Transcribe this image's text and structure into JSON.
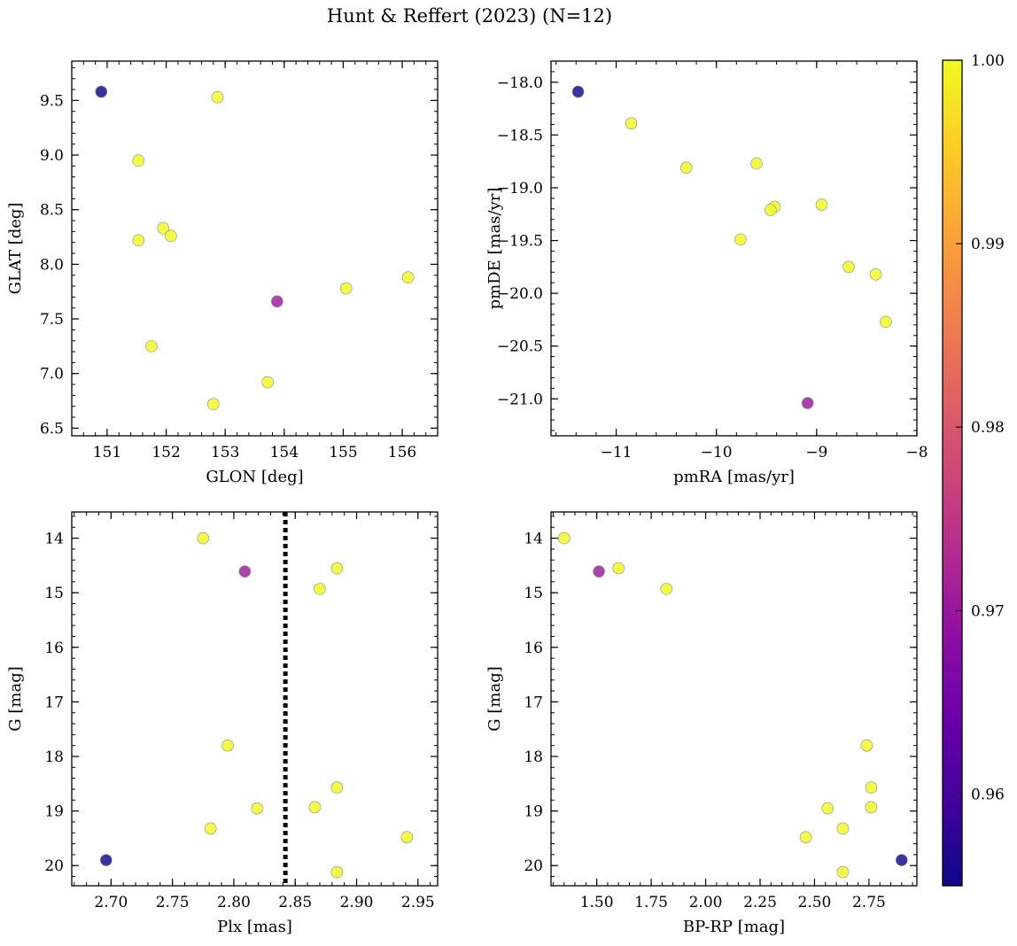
{
  "title": "Hunt & Reffert (2023) (N=12)",
  "colormap": {
    "name": "plasma",
    "range": [
      0.955,
      1.0
    ],
    "tick_labels": [
      "0.96",
      "0.97",
      "0.98",
      "0.99",
      "1.00"
    ],
    "ticks": [
      0.96,
      0.97,
      0.98,
      0.99,
      1.0
    ]
  },
  "chart_data": [
    {
      "type": "scatter",
      "xlabel": "GLON [deg]",
      "ylabel": "GLAT [deg]",
      "xlim": [
        150.4,
        156.6
      ],
      "ylim": [
        6.43,
        9.86
      ],
      "xticks": [
        151,
        152,
        153,
        154,
        155,
        156
      ],
      "xtick_labels": [
        "151",
        "152",
        "153",
        "154",
        "155",
        "156"
      ],
      "yticks": [
        6.5,
        7.0,
        7.5,
        8.0,
        8.5,
        9.0,
        9.5
      ],
      "ytick_labels": [
        "6.5",
        "7.0",
        "7.5",
        "8.0",
        "8.5",
        "9.0",
        "9.5"
      ],
      "points": [
        {
          "x": 150.9,
          "y": 9.58,
          "c": 0.955
        },
        {
          "x": 152.87,
          "y": 9.53,
          "c": 1.0
        },
        {
          "x": 151.53,
          "y": 8.95,
          "c": 1.0
        },
        {
          "x": 151.95,
          "y": 8.33,
          "c": 1.0
        },
        {
          "x": 152.08,
          "y": 8.26,
          "c": 1.0
        },
        {
          "x": 151.53,
          "y": 8.22,
          "c": 1.0
        },
        {
          "x": 156.1,
          "y": 7.88,
          "c": 1.0
        },
        {
          "x": 155.05,
          "y": 7.78,
          "c": 1.0
        },
        {
          "x": 153.88,
          "y": 7.66,
          "c": 0.97
        },
        {
          "x": 151.75,
          "y": 7.25,
          "c": 1.0
        },
        {
          "x": 153.72,
          "y": 6.92,
          "c": 1.0
        },
        {
          "x": 152.8,
          "y": 6.72,
          "c": 1.0
        }
      ]
    },
    {
      "type": "scatter",
      "xlabel": "pmRA [mas/yr]",
      "ylabel": "pmDE [mas/yr]",
      "xlim": [
        -11.65,
        -8.0
      ],
      "ylim": [
        -21.35,
        -17.8
      ],
      "xticks": [
        -11,
        -10,
        -9,
        -8
      ],
      "xtick_labels": [
        "−11",
        "−10",
        "−9",
        "−8"
      ],
      "yticks": [
        -21.0,
        -20.5,
        -20.0,
        -19.5,
        -19.0,
        -18.5,
        -18.0
      ],
      "ytick_labels": [
        "−21.0",
        "−20.5",
        "−20.0",
        "−19.5",
        "−19.0",
        "−18.5",
        "−18.0"
      ],
      "points": [
        {
          "x": -11.38,
          "y": -18.09,
          "c": 0.955
        },
        {
          "x": -10.85,
          "y": -18.39,
          "c": 1.0
        },
        {
          "x": -10.3,
          "y": -18.81,
          "c": 1.0
        },
        {
          "x": -9.6,
          "y": -18.77,
          "c": 1.0
        },
        {
          "x": -9.42,
          "y": -19.18,
          "c": 1.0
        },
        {
          "x": -9.46,
          "y": -19.21,
          "c": 1.0
        },
        {
          "x": -8.95,
          "y": -19.16,
          "c": 1.0
        },
        {
          "x": -9.76,
          "y": -19.49,
          "c": 1.0
        },
        {
          "x": -8.68,
          "y": -19.75,
          "c": 1.0
        },
        {
          "x": -8.41,
          "y": -19.82,
          "c": 1.0
        },
        {
          "x": -8.31,
          "y": -20.27,
          "c": 1.0
        },
        {
          "x": -9.09,
          "y": -21.04,
          "c": 0.97
        }
      ]
    },
    {
      "type": "scatter",
      "xlabel": "Plx [mas]",
      "ylabel": "G [mag]",
      "xlim": [
        2.668,
        2.966
      ],
      "ylim": [
        20.37,
        13.52
      ],
      "y_inverted": true,
      "xticks": [
        2.7,
        2.75,
        2.8,
        2.85,
        2.9,
        2.95
      ],
      "xtick_labels": [
        "2.70",
        "2.75",
        "2.80",
        "2.85",
        "2.90",
        "2.95"
      ],
      "yticks": [
        14,
        15,
        16,
        17,
        18,
        19,
        20
      ],
      "ytick_labels": [
        "14",
        "15",
        "16",
        "17",
        "18",
        "19",
        "20"
      ],
      "vline": {
        "x": 2.842,
        "style": "dotted"
      },
      "points": [
        {
          "x": 2.775,
          "y": 14.0,
          "c": 1.0
        },
        {
          "x": 2.809,
          "y": 14.61,
          "c": 0.97
        },
        {
          "x": 2.884,
          "y": 14.55,
          "c": 1.0
        },
        {
          "x": 2.87,
          "y": 14.93,
          "c": 1.0
        },
        {
          "x": 2.795,
          "y": 17.8,
          "c": 1.0
        },
        {
          "x": 2.884,
          "y": 18.57,
          "c": 1.0
        },
        {
          "x": 2.819,
          "y": 18.95,
          "c": 1.0
        },
        {
          "x": 2.866,
          "y": 18.93,
          "c": 1.0
        },
        {
          "x": 2.781,
          "y": 19.32,
          "c": 1.0
        },
        {
          "x": 2.941,
          "y": 19.48,
          "c": 1.0
        },
        {
          "x": 2.696,
          "y": 19.9,
          "c": 0.955
        },
        {
          "x": 2.884,
          "y": 20.12,
          "c": 1.0
        }
      ]
    },
    {
      "type": "scatter",
      "xlabel": "BP-RP [mag]",
      "ylabel": "G [mag]",
      "xlim": [
        1.29,
        2.97
      ],
      "ylim": [
        20.37,
        13.52
      ],
      "y_inverted": true,
      "xticks": [
        1.5,
        1.75,
        2.0,
        2.25,
        2.5,
        2.75
      ],
      "xtick_labels": [
        "1.50",
        "1.75",
        "2.00",
        "2.25",
        "2.50",
        "2.75"
      ],
      "yticks": [
        14,
        15,
        16,
        17,
        18,
        19,
        20
      ],
      "ytick_labels": [
        "14",
        "15",
        "16",
        "17",
        "18",
        "19",
        "20"
      ],
      "points": [
        {
          "x": 1.35,
          "y": 14.0,
          "c": 1.0
        },
        {
          "x": 1.51,
          "y": 14.61,
          "c": 0.97
        },
        {
          "x": 1.6,
          "y": 14.55,
          "c": 1.0
        },
        {
          "x": 1.82,
          "y": 14.93,
          "c": 1.0
        },
        {
          "x": 2.74,
          "y": 17.8,
          "c": 1.0
        },
        {
          "x": 2.76,
          "y": 18.57,
          "c": 1.0
        },
        {
          "x": 2.56,
          "y": 18.95,
          "c": 1.0
        },
        {
          "x": 2.76,
          "y": 18.93,
          "c": 1.0
        },
        {
          "x": 2.63,
          "y": 19.32,
          "c": 1.0
        },
        {
          "x": 2.46,
          "y": 19.48,
          "c": 1.0
        },
        {
          "x": 2.9,
          "y": 19.9,
          "c": 0.955
        },
        {
          "x": 2.63,
          "y": 20.12,
          "c": 1.0
        }
      ]
    }
  ]
}
